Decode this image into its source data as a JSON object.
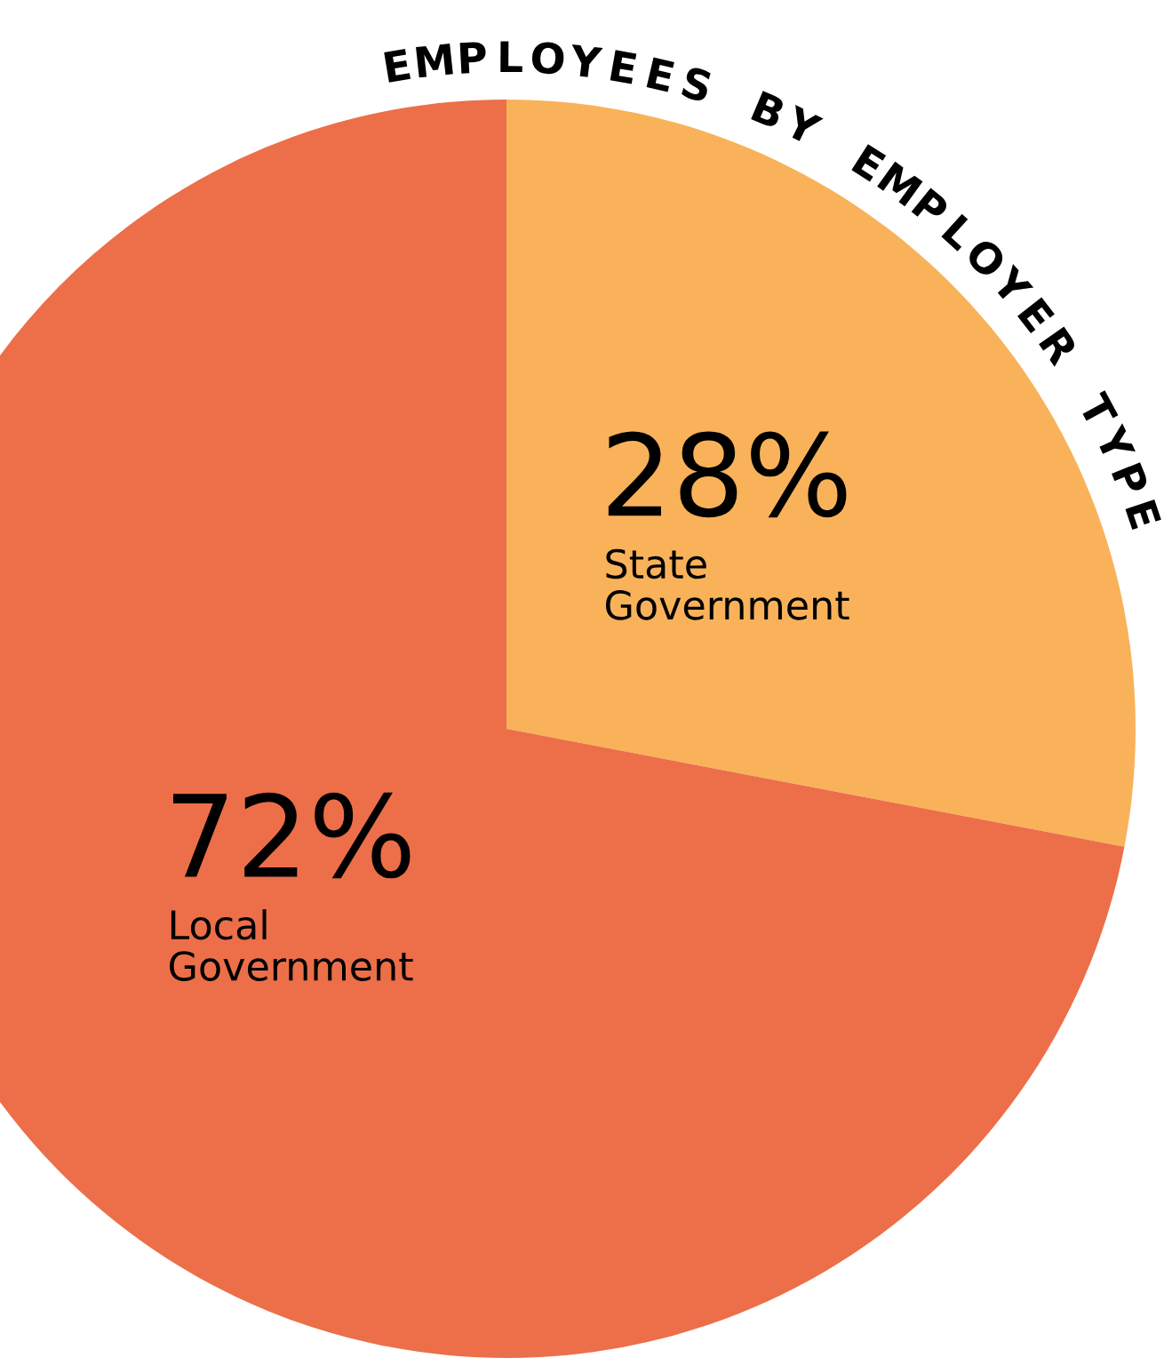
{
  "chart_data": {
    "type": "pie",
    "title": "EMPLOYEES BY EMPLOYER TYPE",
    "categories": [
      "State Government",
      "Local Government"
    ],
    "values": [
      28,
      72
    ],
    "colors": [
      "#f9b25a",
      "#ec6f49"
    ],
    "value_labels": [
      "28%",
      "72%"
    ]
  }
}
